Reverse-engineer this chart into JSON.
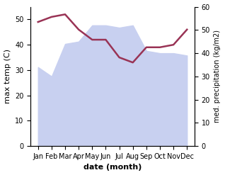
{
  "months": [
    "Jan",
    "Feb",
    "Mar",
    "Apr",
    "May",
    "Jun",
    "Jul",
    "Aug",
    "Sep",
    "Oct",
    "Nov",
    "Dec"
  ],
  "temperature": [
    49,
    51,
    52,
    46,
    42,
    42,
    35,
    33,
    39,
    39,
    40,
    46
  ],
  "rainfall": [
    34,
    30,
    44,
    45,
    52,
    52,
    51,
    52,
    41,
    40,
    40,
    39
  ],
  "temp_color": "#993355",
  "rain_fill_color": "#c8d0f0",
  "xlabel": "date (month)",
  "ylabel_left": "max temp (C)",
  "ylabel_right": "med. precipitation (kg/m2)",
  "ylim_left": [
    0,
    55
  ],
  "ylim_right": [
    0,
    60
  ],
  "yticks_left": [
    0,
    10,
    20,
    30,
    40,
    50
  ],
  "yticks_right": [
    0,
    10,
    20,
    30,
    40,
    50,
    60
  ],
  "background_color": "#ffffff"
}
